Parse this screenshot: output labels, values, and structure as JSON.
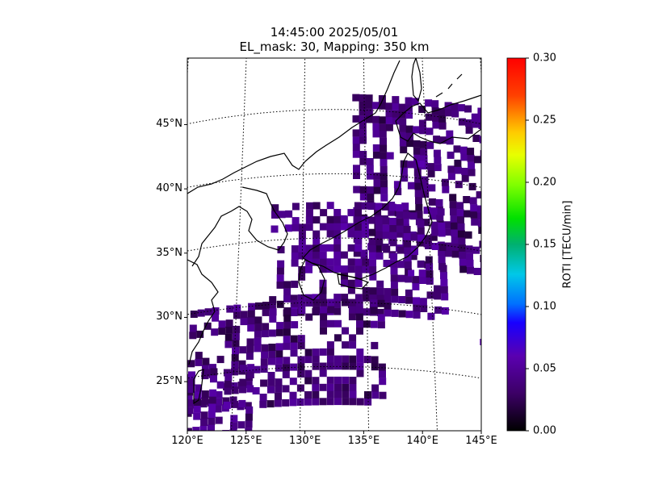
{
  "title": {
    "line1": "14:45:00 2025/05/01",
    "line2": "EL_mask: 30, Mapping: 350 km"
  },
  "map": {
    "lon_range": [
      120,
      145
    ],
    "lat_range": [
      20,
      49
    ],
    "lat_labels": [
      "25°N",
      "30°N",
      "35°N",
      "40°N",
      "45°N"
    ],
    "lat_values": [
      25,
      30,
      35,
      40,
      45
    ],
    "lon_labels": [
      "120°E",
      "125°E",
      "130°E",
      "135°E",
      "140°E",
      "145°E"
    ],
    "lon_values": [
      120,
      125,
      130,
      135,
      140,
      145
    ],
    "grid": "dotted",
    "projection": "curved graticule"
  },
  "colorbar": {
    "label": "ROTI [TECU/min]",
    "min": 0.0,
    "max": 0.3,
    "ticks": [
      "0.00",
      "0.05",
      "0.10",
      "0.15",
      "0.20",
      "0.25",
      "0.30"
    ],
    "tick_values": [
      0.0,
      0.05,
      0.1,
      0.15,
      0.2,
      0.25,
      0.3
    ],
    "colormap": "nipy_spectral-like",
    "colors": [
      "#000000",
      "#40007a",
      "#2a00ff",
      "#00e0ff",
      "#00ff20",
      "#e0ff00",
      "#ff8000",
      "#ff0000"
    ]
  },
  "chart_data": {
    "type": "heatmap",
    "title": "14:45:00 2025/05/01 EL_mask: 30, Mapping: 350 km",
    "xlabel": "",
    "ylabel": "",
    "value_label": "ROTI [TECU/min]",
    "xlim": [
      120,
      145
    ],
    "ylim": [
      20,
      49
    ],
    "zlim": [
      0.0,
      0.3
    ],
    "typical_value": 0.04,
    "hotspots": [
      {
        "lon": 139.3,
        "lat": 40.8,
        "value": 0.06
      },
      {
        "lon": 138.2,
        "lat": 32.2,
        "value": 0.06
      },
      {
        "lon": 133.0,
        "lat": 36.2,
        "value": 0.05
      },
      {
        "lon": 143.5,
        "lat": 27.5,
        "value": 0.06
      }
    ],
    "regions": [
      {
        "lon": [
          134.0,
          145.0
        ],
        "lat": [
          33.0,
          46.0
        ],
        "value": 0.035
      },
      {
        "lon": [
          127.5,
          141.0
        ],
        "lat": [
          29.0,
          37.5
        ],
        "value": 0.04
      },
      {
        "lon": [
          121.5,
          136.0
        ],
        "lat": [
          22.0,
          30.0
        ],
        "value": 0.035
      },
      {
        "lon": [
          120.5,
          126.0
        ],
        "lat": [
          20.0,
          25.5
        ],
        "value": 0.04
      }
    ]
  }
}
